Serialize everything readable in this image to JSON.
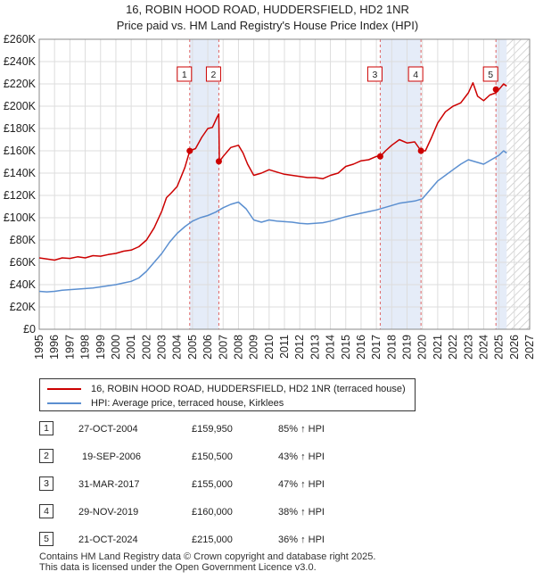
{
  "title_line1": "16, ROBIN HOOD ROAD, HUDDERSFIELD, HD2 1NR",
  "title_line2": "Price paid vs. HM Land Registry's House Price Index (HPI)",
  "chart_data": {
    "type": "line",
    "xlim": [
      1995,
      2027
    ],
    "ylim": [
      0,
      260000
    ],
    "y_ticks": [
      0,
      20000,
      40000,
      60000,
      80000,
      100000,
      120000,
      140000,
      160000,
      180000,
      200000,
      220000,
      240000,
      260000
    ],
    "y_tick_labels": [
      "£0",
      "£20K",
      "£40K",
      "£60K",
      "£80K",
      "£100K",
      "£120K",
      "£140K",
      "£160K",
      "£180K",
      "£200K",
      "£220K",
      "£240K",
      "£260K"
    ],
    "x_ticks": [
      1995,
      1996,
      1997,
      1998,
      1999,
      2000,
      2001,
      2002,
      2003,
      2004,
      2005,
      2006,
      2007,
      2008,
      2009,
      2010,
      2011,
      2012,
      2013,
      2014,
      2015,
      2016,
      2017,
      2018,
      2019,
      2020,
      2021,
      2022,
      2023,
      2024,
      2025,
      2026,
      2027
    ],
    "x_tick_labels": [
      "1995",
      "1996",
      "1997",
      "1998",
      "1999",
      "2000",
      "2001",
      "2002",
      "2003",
      "2004",
      "2005",
      "2006",
      "2007",
      "2008",
      "2009",
      "2010",
      "2011",
      "2012",
      "2013",
      "2014",
      "2015",
      "2016",
      "2017",
      "2018",
      "2019",
      "2020",
      "2021",
      "2022",
      "2023",
      "2024",
      "2025",
      "2026",
      "2027"
    ],
    "grid": true,
    "series": [
      {
        "name": "16, ROBIN HOOD ROAD, HUDDERSFIELD, HD2 1NR (terraced house)",
        "color": "#cc0000",
        "x": [
          1995,
          1995.5,
          1996,
          1996.5,
          1997,
          1997.5,
          1998,
          1998.5,
          1999,
          1999.5,
          2000,
          2000.5,
          2001,
          2001.5,
          2002,
          2002.5,
          2003,
          2003.3,
          2003.6,
          2004,
          2004.5,
          2004.82,
          2005.2,
          2005.6,
          2006.0,
          2006.3,
          2006.6,
          2006.72,
          2006.75,
          2007.0,
          2007.5,
          2008.0,
          2008.3,
          2008.6,
          2009.0,
          2009.5,
          2010,
          2010.5,
          2011,
          2011.5,
          2012,
          2012.5,
          2013,
          2013.5,
          2014,
          2014.5,
          2015,
          2015.5,
          2016,
          2016.5,
          2017.0,
          2017.25,
          2017.6,
          2018.0,
          2018.5,
          2019.0,
          2019.5,
          2019.91,
          2020.2,
          2020.6,
          2021,
          2021.5,
          2022,
          2022.5,
          2023.0,
          2023.3,
          2023.6,
          2024.0,
          2024.4,
          2024.8,
          2025.0,
          2025.3,
          2025.5
        ],
        "y": [
          64000,
          63000,
          62000,
          64000,
          63500,
          65000,
          64000,
          66000,
          65500,
          67000,
          68000,
          70000,
          71000,
          74000,
          80000,
          91000,
          106000,
          118000,
          122000,
          128000,
          145000,
          159950,
          162000,
          172000,
          180000,
          181000,
          190000,
          193000,
          150500,
          155000,
          163000,
          165000,
          158000,
          148000,
          138000,
          140000,
          143000,
          141000,
          139000,
          138000,
          137000,
          136000,
          136000,
          135000,
          138000,
          140000,
          146000,
          148000,
          151000,
          152000,
          155000,
          155000,
          160000,
          165000,
          170000,
          167000,
          168000,
          160000,
          160000,
          172000,
          185000,
          195000,
          200000,
          203000,
          212000,
          221000,
          209000,
          205000,
          210000,
          212000,
          215000,
          220000,
          218000
        ]
      },
      {
        "name": "HPI: Average price, terraced house, Kirklees",
        "color": "#5b8fd0",
        "x": [
          1995,
          1995.5,
          1996,
          1996.5,
          1997,
          1997.5,
          1998,
          1998.5,
          1999,
          1999.5,
          2000,
          2000.5,
          2001,
          2001.5,
          2002,
          2002.5,
          2003,
          2003.5,
          2004,
          2004.5,
          2005,
          2005.5,
          2006,
          2006.5,
          2007,
          2007.5,
          2008,
          2008.5,
          2009,
          2009.5,
          2010,
          2010.5,
          2011,
          2011.5,
          2012,
          2012.5,
          2013,
          2013.5,
          2014,
          2014.5,
          2015,
          2015.5,
          2016,
          2016.5,
          2017,
          2017.5,
          2018,
          2018.5,
          2019,
          2019.5,
          2020,
          2020.5,
          2021,
          2021.5,
          2022,
          2022.5,
          2023,
          2023.5,
          2024,
          2024.5,
          2025,
          2025.3,
          2025.5
        ],
        "y": [
          34000,
          33500,
          34000,
          35000,
          35500,
          36000,
          36500,
          37000,
          38000,
          39000,
          40000,
          41500,
          43000,
          46000,
          52000,
          60000,
          68000,
          78000,
          86000,
          92000,
          97000,
          100000,
          102000,
          105000,
          109000,
          112000,
          114000,
          108000,
          98000,
          96000,
          98000,
          97000,
          96500,
          96000,
          95000,
          94500,
          95000,
          95500,
          97000,
          99000,
          101000,
          102500,
          104000,
          105500,
          107000,
          109000,
          111000,
          113000,
          114000,
          115000,
          117000,
          125000,
          133000,
          138000,
          143000,
          148000,
          152000,
          150000,
          148000,
          152000,
          156000,
          160000,
          158000
        ]
      }
    ],
    "sales": [
      {
        "n": 1,
        "x": 2004.82,
        "y": 159950
      },
      {
        "n": 2,
        "x": 2006.72,
        "y": 150500
      },
      {
        "n": 3,
        "x": 2017.25,
        "y": 155000
      },
      {
        "n": 4,
        "x": 2019.91,
        "y": 160000
      },
      {
        "n": 5,
        "x": 2024.8,
        "y": 215000
      }
    ],
    "shaded_bands": [
      [
        2004.82,
        2006.72
      ],
      [
        2017.25,
        2019.91
      ],
      [
        2024.8,
        2025.5
      ]
    ],
    "hatched_future_from": 2025.5
  },
  "legend": {
    "sales_label": "16, ROBIN HOOD ROAD, HUDDERSFIELD, HD2 1NR (terraced house)",
    "hpi_label": "HPI: Average price, terraced house, Kirklees"
  },
  "sales_table": [
    {
      "n": "1",
      "date": "27-OCT-2004",
      "price": "£159,950",
      "pct": "85% ↑ HPI"
    },
    {
      "n": "2",
      "date": "19-SEP-2006",
      "price": "£150,500",
      "pct": "43% ↑ HPI"
    },
    {
      "n": "3",
      "date": "31-MAR-2017",
      "price": "£155,000",
      "pct": "47% ↑ HPI"
    },
    {
      "n": "4",
      "date": "29-NOV-2019",
      "price": "£160,000",
      "pct": "38% ↑ HPI"
    },
    {
      "n": "5",
      "date": "21-OCT-2024",
      "price": "£215,000",
      "pct": "36% ↑ HPI"
    }
  ],
  "footer_line1": "Contains HM Land Registry data © Crown copyright and database right 2025.",
  "footer_line2": "This data is licensed under the Open Government Licence v3.0."
}
